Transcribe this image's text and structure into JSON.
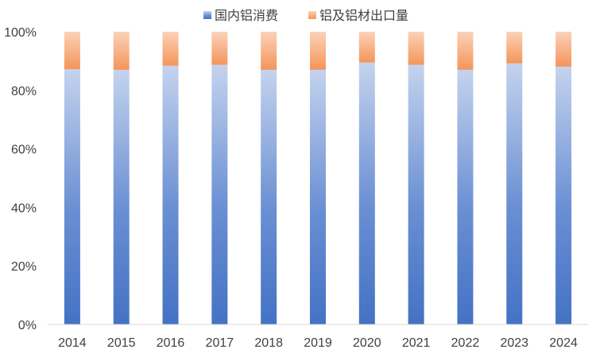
{
  "chart_data": {
    "type": "bar",
    "stacked": "percent",
    "categories": [
      "2014",
      "2015",
      "2016",
      "2017",
      "2018",
      "2019",
      "2020",
      "2021",
      "2022",
      "2023",
      "2024"
    ],
    "series": [
      {
        "name": "国内铝消费",
        "color": "#4472c4",
        "values": [
          87.2,
          87.0,
          88.4,
          88.7,
          87.0,
          87.0,
          89.5,
          88.7,
          87.0,
          89.2,
          88.1
        ]
      },
      {
        "name": "铝及铝材出口量",
        "color": "#f4955a",
        "values": [
          12.8,
          13.0,
          11.6,
          11.3,
          13.0,
          13.0,
          10.5,
          11.3,
          13.0,
          10.8,
          11.9
        ]
      }
    ],
    "ylim": [
      0,
      100
    ],
    "yticks": [
      "0%",
      "20%",
      "40%",
      "60%",
      "80%",
      "100%"
    ],
    "legend_position": "top-center",
    "grid": false
  }
}
